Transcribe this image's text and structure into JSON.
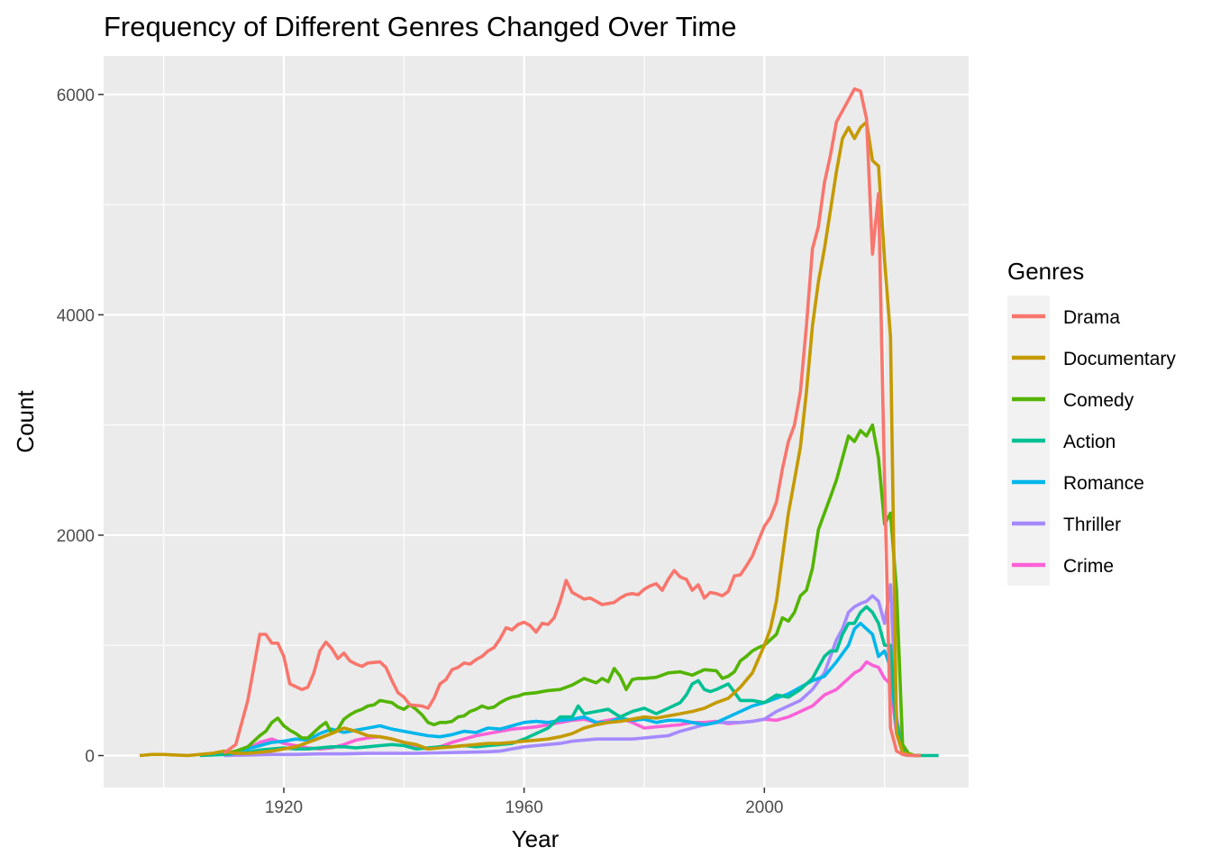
{
  "chart_data": {
    "type": "line",
    "title": "Frequency of Different Genres Changed Over Time",
    "xlabel": "Year",
    "ylabel": "Count",
    "xlim": [
      1890,
      2034
    ],
    "ylim": [
      -290,
      6350
    ],
    "xticks": [
      1920,
      1960,
      2000
    ],
    "yticks": [
      0,
      2000,
      4000,
      6000
    ],
    "grid": true,
    "legend_title": "Genres",
    "legend_position": "right",
    "series": [
      {
        "name": "Drama",
        "color": "#F8766D",
        "x": [
          1910,
          1912,
          1914,
          1915,
          1916,
          1917,
          1918,
          1919,
          1920,
          1921,
          1923,
          1924,
          1925,
          1926,
          1927,
          1928,
          1929,
          1930,
          1931,
          1932,
          1933,
          1934,
          1936,
          1937,
          1938,
          1939,
          1940,
          1941,
          1943,
          1944,
          1945,
          1946,
          1947,
          1948,
          1949,
          1950,
          1951,
          1952,
          1953,
          1954,
          1955,
          1956,
          1957,
          1958,
          1959,
          1960,
          1961,
          1962,
          1963,
          1964,
          1965,
          1966,
          1967,
          1968,
          1969,
          1970,
          1971,
          1972,
          1973,
          1974,
          1975,
          1976,
          1977,
          1978,
          1979,
          1980,
          1981,
          1982,
          1983,
          1984,
          1985,
          1986,
          1987,
          1988,
          1989,
          1990,
          1991,
          1992,
          1993,
          1994,
          1995,
          1996,
          1997,
          1998,
          1999,
          2000,
          2001,
          2002,
          2003,
          2004,
          2005,
          2006,
          2007,
          2008,
          2009,
          2010,
          2011,
          2012,
          2013,
          2014,
          2015,
          2016,
          2017,
          2018,
          2019,
          2020,
          2021,
          2022,
          2023,
          2024,
          2025,
          2026
        ],
        "values": [
          20,
          100,
          500,
          800,
          1100,
          1100,
          1020,
          1020,
          900,
          650,
          600,
          620,
          750,
          950,
          1030,
          970,
          880,
          930,
          860,
          830,
          810,
          840,
          850,
          800,
          680,
          570,
          530,
          460,
          450,
          430,
          520,
          650,
          690,
          780,
          800,
          840,
          830,
          870,
          900,
          950,
          980,
          1060,
          1160,
          1140,
          1190,
          1210,
          1180,
          1120,
          1200,
          1190,
          1250,
          1400,
          1590,
          1480,
          1450,
          1420,
          1430,
          1400,
          1370,
          1380,
          1390,
          1430,
          1460,
          1470,
          1460,
          1510,
          1540,
          1560,
          1500,
          1600,
          1680,
          1620,
          1600,
          1500,
          1550,
          1430,
          1480,
          1470,
          1450,
          1490,
          1630,
          1640,
          1720,
          1810,
          1950,
          2080,
          2160,
          2300,
          2600,
          2850,
          3000,
          3300,
          3900,
          4600,
          4800,
          5200,
          5450,
          5750,
          5850,
          5950,
          6050,
          6030,
          5780,
          4550,
          5100,
          2500,
          250,
          40,
          10,
          0,
          0,
          0
        ]
      },
      {
        "name": "Documentary",
        "color": "#C49A00",
        "x": [
          1896,
          1898,
          1900,
          1902,
          1904,
          1906,
          1908,
          1910,
          1912,
          1914,
          1916,
          1918,
          1920,
          1922,
          1924,
          1926,
          1928,
          1930,
          1932,
          1934,
          1936,
          1938,
          1940,
          1942,
          1944,
          1946,
          1948,
          1950,
          1952,
          1954,
          1956,
          1958,
          1960,
          1962,
          1964,
          1966,
          1968,
          1970,
          1972,
          1974,
          1976,
          1978,
          1980,
          1982,
          1984,
          1986,
          1988,
          1990,
          1992,
          1994,
          1996,
          1998,
          2000,
          2001,
          2002,
          2003,
          2004,
          2005,
          2006,
          2007,
          2008,
          2009,
          2010,
          2011,
          2012,
          2013,
          2014,
          2015,
          2016,
          2017,
          2018,
          2019,
          2020,
          2021,
          2022,
          2023,
          2024,
          2025,
          2026
        ],
        "values": [
          0,
          10,
          10,
          5,
          0,
          10,
          20,
          40,
          20,
          20,
          30,
          40,
          60,
          80,
          120,
          160,
          200,
          250,
          220,
          180,
          170,
          150,
          120,
          100,
          60,
          70,
          80,
          90,
          100,
          110,
          110,
          120,
          130,
          140,
          150,
          170,
          200,
          250,
          280,
          300,
          310,
          330,
          350,
          340,
          360,
          380,
          400,
          430,
          480,
          520,
          620,
          750,
          1000,
          1150,
          1400,
          1800,
          2200,
          2500,
          2800,
          3300,
          3900,
          4300,
          4600,
          4950,
          5300,
          5600,
          5700,
          5600,
          5700,
          5750,
          5400,
          5350,
          4500,
          3800,
          200,
          30,
          10,
          0,
          0
        ]
      },
      {
        "name": "Comedy",
        "color": "#53B400",
        "x": [
          1910,
          1912,
          1914,
          1916,
          1917,
          1918,
          1919,
          1920,
          1921,
          1922,
          1923,
          1924,
          1925,
          1926,
          1927,
          1928,
          1929,
          1930,
          1931,
          1932,
          1933,
          1934,
          1935,
          1936,
          1937,
          1938,
          1939,
          1940,
          1941,
          1942,
          1943,
          1944,
          1945,
          1946,
          1947,
          1948,
          1949,
          1950,
          1951,
          1952,
          1953,
          1954,
          1955,
          1956,
          1957,
          1958,
          1959,
          1960,
          1962,
          1964,
          1966,
          1968,
          1970,
          1971,
          1972,
          1973,
          1974,
          1975,
          1976,
          1977,
          1978,
          1979,
          1980,
          1982,
          1984,
          1986,
          1988,
          1990,
          1992,
          1993,
          1994,
          1995,
          1996,
          1997,
          1998,
          1999,
          2000,
          2001,
          2002,
          2003,
          2004,
          2005,
          2006,
          2007,
          2008,
          2009,
          2010,
          2011,
          2012,
          2013,
          2014,
          2015,
          2016,
          2017,
          2018,
          2019,
          2020,
          2021,
          2022,
          2023,
          2024,
          2025,
          2026
        ],
        "values": [
          20,
          40,
          80,
          180,
          220,
          300,
          340,
          270,
          230,
          200,
          160,
          160,
          210,
          260,
          300,
          200,
          240,
          330,
          370,
          400,
          420,
          450,
          460,
          500,
          490,
          480,
          440,
          420,
          460,
          420,
          370,
          300,
          280,
          300,
          300,
          310,
          350,
          360,
          400,
          420,
          450,
          430,
          440,
          480,
          510,
          530,
          540,
          560,
          570,
          590,
          600,
          640,
          700,
          680,
          660,
          700,
          670,
          790,
          720,
          600,
          690,
          700,
          700,
          710,
          750,
          760,
          730,
          780,
          770,
          700,
          720,
          760,
          860,
          900,
          950,
          980,
          1000,
          1050,
          1100,
          1250,
          1220,
          1300,
          1450,
          1500,
          1700,
          2050,
          2200,
          2350,
          2500,
          2700,
          2900,
          2850,
          2950,
          2900,
          3000,
          2700,
          2100,
          2200,
          1500,
          100,
          20,
          0,
          0
        ]
      },
      {
        "name": "Action",
        "color": "#00C094",
        "x": [
          1906,
          1908,
          1910,
          1912,
          1914,
          1916,
          1918,
          1920,
          1922,
          1924,
          1926,
          1928,
          1930,
          1932,
          1934,
          1936,
          1938,
          1940,
          1942,
          1944,
          1946,
          1948,
          1950,
          1952,
          1954,
          1956,
          1958,
          1960,
          1962,
          1964,
          1966,
          1968,
          1969,
          1970,
          1972,
          1974,
          1976,
          1978,
          1980,
          1982,
          1984,
          1986,
          1987,
          1988,
          1989,
          1990,
          1991,
          1992,
          1994,
          1996,
          1998,
          2000,
          2002,
          2004,
          2006,
          2008,
          2009,
          2010,
          2011,
          2012,
          2013,
          2014,
          2015,
          2016,
          2017,
          2018,
          2019,
          2020,
          2021,
          2022,
          2023,
          2024,
          2025,
          2026,
          2027,
          2028,
          2029
        ],
        "values": [
          0,
          5,
          10,
          20,
          30,
          50,
          60,
          70,
          60,
          60,
          70,
          80,
          80,
          70,
          80,
          90,
          100,
          90,
          60,
          70,
          80,
          80,
          90,
          80,
          90,
          100,
          110,
          150,
          200,
          250,
          350,
          350,
          450,
          380,
          400,
          420,
          350,
          400,
          430,
          380,
          430,
          480,
          550,
          650,
          680,
          600,
          580,
          600,
          650,
          500,
          500,
          480,
          550,
          530,
          600,
          700,
          800,
          900,
          950,
          950,
          1100,
          1200,
          1200,
          1300,
          1350,
          1300,
          1200,
          1000,
          1000,
          300,
          50,
          10,
          0,
          0,
          0,
          0,
          0
        ]
      },
      {
        "name": "Romance",
        "color": "#00B6EB",
        "x": [
          1910,
          1912,
          1914,
          1916,
          1918,
          1920,
          1922,
          1924,
          1926,
          1928,
          1930,
          1932,
          1934,
          1936,
          1938,
          1940,
          1942,
          1944,
          1946,
          1948,
          1950,
          1952,
          1954,
          1956,
          1958,
          1960,
          1962,
          1964,
          1966,
          1968,
          1970,
          1972,
          1974,
          1976,
          1978,
          1980,
          1982,
          1984,
          1986,
          1988,
          1990,
          1992,
          1994,
          1996,
          1998,
          2000,
          2002,
          2004,
          2006,
          2008,
          2010,
          2012,
          2014,
          2015,
          2016,
          2017,
          2018,
          2019,
          2020,
          2021,
          2022,
          2023,
          2024,
          2025,
          2026
        ],
        "values": [
          10,
          30,
          60,
          90,
          120,
          130,
          150,
          140,
          200,
          240,
          210,
          230,
          250,
          270,
          240,
          220,
          200,
          180,
          170,
          190,
          220,
          210,
          250,
          240,
          270,
          300,
          310,
          300,
          320,
          330,
          350,
          300,
          300,
          340,
          320,
          330,
          300,
          320,
          320,
          300,
          280,
          300,
          350,
          400,
          450,
          480,
          520,
          560,
          620,
          680,
          720,
          850,
          1000,
          1150,
          1200,
          1150,
          1100,
          900,
          950,
          800,
          250,
          40,
          10,
          0,
          0
        ]
      },
      {
        "name": "Thriller",
        "color": "#A58AFF",
        "x": [
          1910,
          1914,
          1918,
          1922,
          1926,
          1930,
          1934,
          1938,
          1942,
          1946,
          1950,
          1954,
          1956,
          1958,
          1960,
          1962,
          1964,
          1966,
          1968,
          1970,
          1972,
          1974,
          1976,
          1978,
          1980,
          1982,
          1984,
          1986,
          1988,
          1990,
          1992,
          1994,
          1996,
          1998,
          2000,
          2002,
          2004,
          2006,
          2008,
          2010,
          2011,
          2012,
          2013,
          2014,
          2015,
          2016,
          2017,
          2018,
          2019,
          2020,
          2021,
          2022,
          2023,
          2024,
          2025,
          2026
        ],
        "values": [
          0,
          5,
          10,
          10,
          15,
          15,
          20,
          20,
          20,
          25,
          30,
          35,
          40,
          60,
          80,
          90,
          100,
          110,
          130,
          140,
          150,
          150,
          150,
          150,
          160,
          170,
          180,
          220,
          250,
          280,
          300,
          300,
          300,
          310,
          330,
          400,
          450,
          500,
          600,
          750,
          900,
          1050,
          1150,
          1300,
          1350,
          1380,
          1400,
          1450,
          1400,
          1200,
          1550,
          350,
          50,
          10,
          0,
          0
        ]
      },
      {
        "name": "Crime",
        "color": "#FB61D7",
        "x": [
          1910,
          1912,
          1914,
          1916,
          1918,
          1920,
          1922,
          1924,
          1926,
          1928,
          1930,
          1932,
          1934,
          1936,
          1938,
          1940,
          1942,
          1944,
          1946,
          1948,
          1950,
          1952,
          1954,
          1956,
          1958,
          1960,
          1962,
          1964,
          1966,
          1968,
          1970,
          1972,
          1974,
          1976,
          1978,
          1980,
          1982,
          1984,
          1986,
          1988,
          1990,
          1992,
          1994,
          1996,
          1998,
          2000,
          2002,
          2004,
          2006,
          2008,
          2010,
          2012,
          2014,
          2015,
          2016,
          2017,
          2018,
          2019,
          2020,
          2021,
          2022,
          2023,
          2024,
          2025,
          2026
        ],
        "values": [
          5,
          20,
          60,
          120,
          150,
          110,
          90,
          70,
          60,
          70,
          100,
          140,
          160,
          170,
          150,
          120,
          80,
          60,
          80,
          120,
          150,
          180,
          200,
          220,
          240,
          250,
          260,
          280,
          300,
          320,
          330,
          300,
          320,
          340,
          300,
          250,
          260,
          270,
          280,
          300,
          300,
          310,
          290,
          300,
          310,
          330,
          320,
          350,
          400,
          450,
          550,
          600,
          700,
          750,
          780,
          850,
          820,
          800,
          700,
          650,
          200,
          30,
          10,
          0,
          0
        ]
      }
    ]
  }
}
